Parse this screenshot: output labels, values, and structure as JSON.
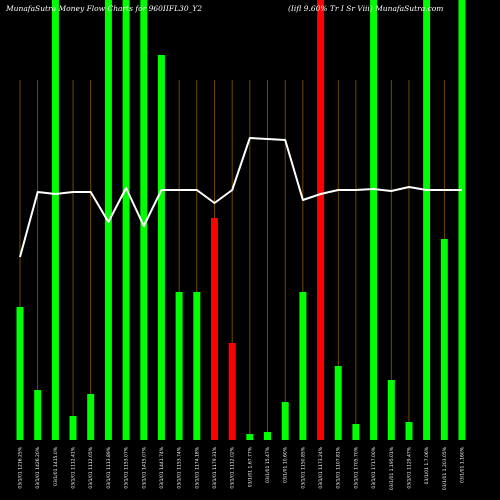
{
  "chart_data": {
    "type": "bar",
    "title_left": "MunafaSutra  Money Flow  Charts for 960IIFL30_Y2",
    "title_right": "(Iifl 9.60% Tr I Sr Viii) MunafaSutra.com",
    "categories": [
      "03/1/01 1216.25%",
      "03/1/01 1426.20%",
      "03/1/01 1415.0%",
      "03/1/01 1112.41%",
      "03/1/01 1112.05%",
      "03/1/01 1113.89%",
      "03/1/01 1153.07%",
      "03/1/01 1415.07%",
      "03/1/01 1441.74%",
      "03/1/01 1153.74%",
      "03/1/01 1174.18%",
      "03/1/01 1179.31%",
      "03/1/01 1112.02%",
      "03/1/01 1.67.77%",
      "03/1/01 15.47%",
      "03/1/01 10.60%",
      "03/1/01 1150.85%",
      "03/1/01 1173.24%",
      "03/1/01 1107.81%",
      "03/1/01 1705.70%",
      "03/1/01 1717.00%",
      "03/1/01 1.195.01%",
      "03/1/01 1129.47%",
      "03/1/01 1.7.06%",
      "03/1/01 1.203.05%",
      "03/1/01 1.160%"
    ],
    "bar_values": [
      133,
      50,
      440,
      24,
      46,
      440,
      440,
      440,
      385,
      148,
      148,
      222,
      97,
      6,
      8,
      38,
      148,
      440,
      74,
      16,
      440,
      60,
      18,
      440,
      201,
      440
    ],
    "bar_colors": [
      "green",
      "green",
      "green",
      "green",
      "green",
      "green",
      "green",
      "green",
      "green",
      "green",
      "green",
      "red",
      "red",
      "green",
      "green",
      "green",
      "green",
      "red",
      "green",
      "green",
      "green",
      "green",
      "green",
      "green",
      "green",
      "green"
    ],
    "line_values": [
      183,
      248,
      246,
      248,
      248,
      218,
      252,
      214,
      250,
      250,
      250,
      237,
      250,
      302,
      301,
      300,
      240,
      246,
      250,
      250,
      251,
      249,
      253,
      250,
      250,
      250
    ],
    "ylim": [
      0,
      440
    ],
    "grid": true,
    "colors": {
      "green": "#00ff00",
      "red": "#ff0000",
      "line": "#ffffff",
      "grid": "#8b5a00",
      "background": "#000000"
    }
  }
}
